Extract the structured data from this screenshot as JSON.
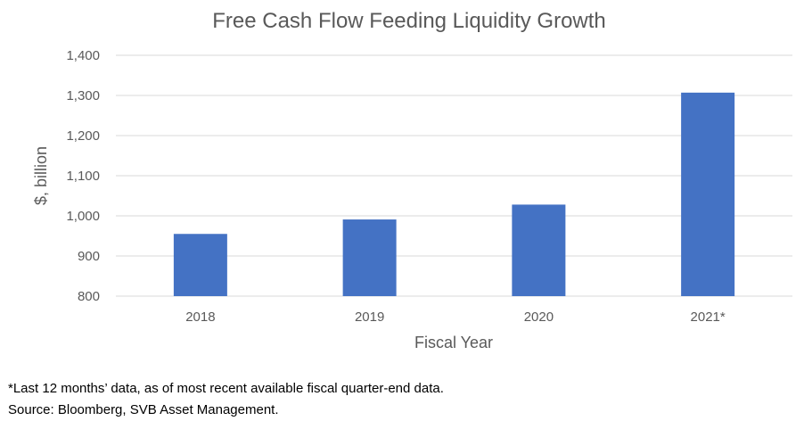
{
  "colors": {
    "bar": "#4472C4",
    "grid": "#D9D9D9",
    "text": "#595959",
    "footnote": "#000000"
  },
  "chart_data": {
    "type": "bar",
    "title": "Free Cash Flow Feeding Liquidity Growth",
    "xlabel": "Fiscal Year",
    "ylabel": "$, billion",
    "categories": [
      "2018",
      "2019",
      "2020",
      "2021*"
    ],
    "series": [
      {
        "values": [
          955,
          991,
          1028,
          1307
        ]
      }
    ],
    "ylim": [
      800,
      1400
    ],
    "yticks": [
      800,
      900,
      1000,
      1100,
      1200,
      1300,
      1400
    ],
    "ytick_labels": [
      "800",
      "900",
      "1,000",
      "1,100",
      "1,200",
      "1,300",
      "1,400"
    ],
    "grid": true,
    "legend": "none"
  },
  "footnotes": {
    "note": "*Last 12 months’ data, as of most recent available fiscal quarter-end data.",
    "source": "Source: Bloomberg, SVB Asset Management."
  }
}
